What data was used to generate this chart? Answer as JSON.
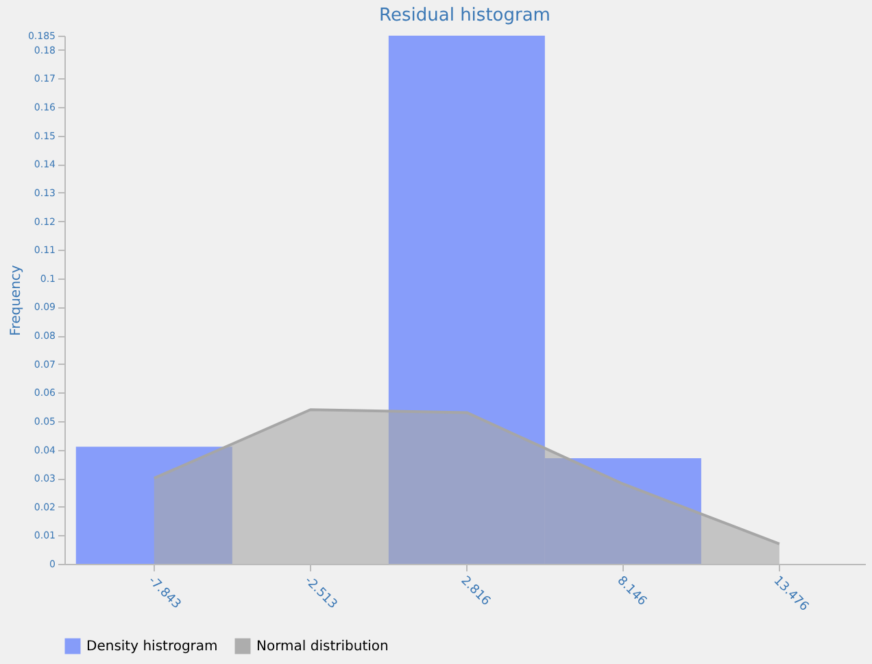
{
  "chart_data": {
    "type": "histogram",
    "title": "Residual histogram",
    "ylabel": "Frequency",
    "bins": [
      -10.508,
      -5.178,
      0.152,
      5.481,
      10.811
    ],
    "series": [
      {
        "name": "Density histrogram",
        "color": "#7b93fb",
        "values": [
          0.041,
          0,
          0.185,
          0.037
        ]
      },
      {
        "name": "Normal distribution",
        "type": "area",
        "color": "#a6a6a6",
        "x": [
          -7.843,
          -2.513,
          2.816,
          8.146,
          13.476
        ],
        "values": [
          0.03,
          0.054,
          0.053,
          0.028,
          0.007
        ]
      }
    ],
    "xlim": [
      -10.9,
      16.4
    ],
    "xticks": [
      -7.843,
      -2.513,
      2.816,
      8.146,
      13.476
    ],
    "ylim": [
      0,
      0.185
    ],
    "yticks": [
      0,
      0.01,
      0.02,
      0.03,
      0.04,
      0.05,
      0.06,
      0.07,
      0.08,
      0.09,
      0.1,
      0.11,
      0.12,
      0.13,
      0.14,
      0.15,
      0.16,
      0.17,
      0.18,
      0.185
    ],
    "grid": false,
    "legend": "bottom"
  }
}
